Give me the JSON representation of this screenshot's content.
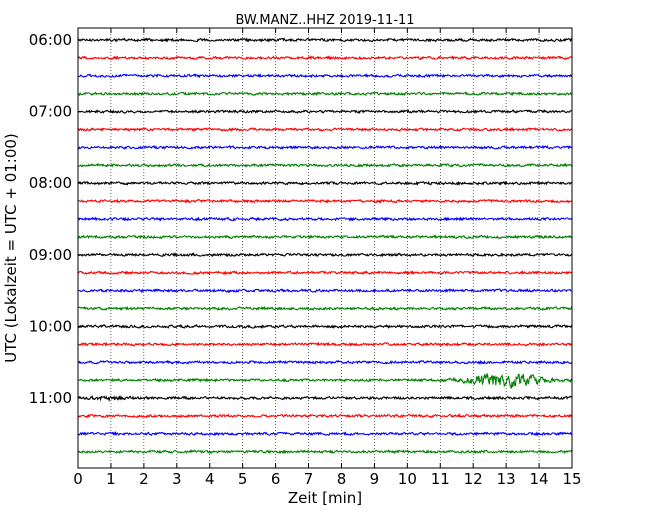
{
  "chart_data": {
    "type": "line",
    "title": "BW.MANZ..HHZ 2019-11-11",
    "xlabel": "Zeit  [min]",
    "ylabel": "UTC (Lokalzeit = UTC + 01:00)",
    "xlim": [
      0,
      15
    ],
    "x_ticks": [
      "0",
      "1",
      "2",
      "3",
      "4",
      "5",
      "6",
      "7",
      "8",
      "9",
      "10",
      "11",
      "12",
      "13",
      "14",
      "15"
    ],
    "y_ticks": [
      "06:00",
      "07:00",
      "08:00",
      "09:00",
      "10:00",
      "11:00"
    ],
    "grid": "x-dotted",
    "trace_colors": [
      "#000000",
      "#ff0000",
      "#0000ff",
      "#008000"
    ],
    "traces": [
      {
        "start": "06:00",
        "amp": 1.0
      },
      {
        "start": "06:15",
        "amp": 1.0
      },
      {
        "start": "06:30",
        "amp": 1.0
      },
      {
        "start": "06:45",
        "amp": 1.0
      },
      {
        "start": "07:00",
        "amp": 1.0
      },
      {
        "start": "07:15",
        "amp": 1.0
      },
      {
        "start": "07:30",
        "amp": 1.0
      },
      {
        "start": "07:45",
        "amp": 1.0
      },
      {
        "start": "08:00",
        "amp": 1.0
      },
      {
        "start": "08:15",
        "amp": 1.0
      },
      {
        "start": "08:30",
        "amp": 1.0
      },
      {
        "start": "08:45",
        "amp": 1.0
      },
      {
        "start": "09:00",
        "amp": 1.0
      },
      {
        "start": "09:15",
        "amp": 1.0
      },
      {
        "start": "09:30",
        "amp": 1.0
      },
      {
        "start": "09:45",
        "amp": 1.0
      },
      {
        "start": "10:00",
        "amp": 1.0
      },
      {
        "start": "10:15",
        "amp": 1.0
      },
      {
        "start": "10:30",
        "amp": 1.0
      },
      {
        "start": "10:45",
        "amp": 1.0,
        "event": {
          "from_min": 11.0,
          "to_min": 15.0,
          "peak_min": 13.0,
          "amp": 6.0
        }
      },
      {
        "start": "11:00",
        "amp": 1.0,
        "event": {
          "from_min": 0.0,
          "to_min": 1.8,
          "peak_min": 1.0,
          "amp": 2.0
        }
      },
      {
        "start": "11:15",
        "amp": 1.0
      },
      {
        "start": "11:30",
        "amp": 1.0
      },
      {
        "start": "11:45",
        "amp": 1.0
      }
    ]
  }
}
